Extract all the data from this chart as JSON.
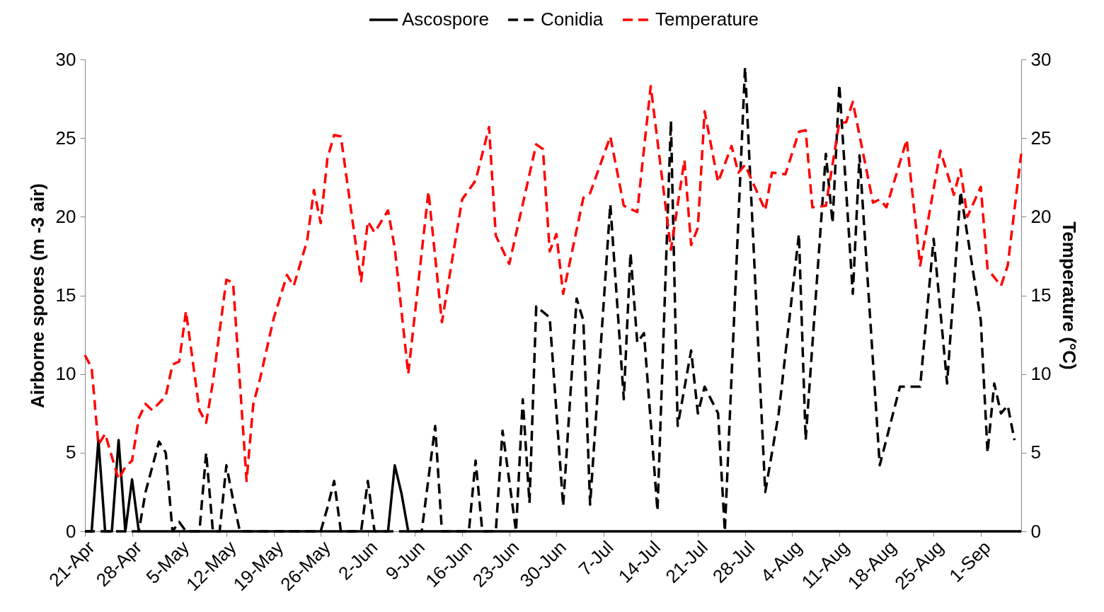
{
  "chart_data": {
    "type": "line",
    "ylabel": "Airborne spores (m -3 air)",
    "y2label": "Temperature (°C)",
    "legend": "top",
    "xlim": [
      "--04-21",
      "--09-07"
    ],
    "xticks": [
      {
        "value": "--04-21",
        "label": "21-Apr"
      },
      {
        "value": "--04-28",
        "label": "28-Apr"
      },
      {
        "value": "--05-05",
        "label": "5-May"
      },
      {
        "value": "--05-12",
        "label": "12-May"
      },
      {
        "value": "--05-19",
        "label": "19-May"
      },
      {
        "value": "--05-26",
        "label": "26-May"
      },
      {
        "value": "--06-02",
        "label": "2-Jun"
      },
      {
        "value": "--06-09",
        "label": "9-Jun"
      },
      {
        "value": "--06-16",
        "label": "16-Jun"
      },
      {
        "value": "--06-23",
        "label": "23-Jun"
      },
      {
        "value": "--06-30",
        "label": "30-Jun"
      },
      {
        "value": "--07-07",
        "label": "7-Jul"
      },
      {
        "value": "--07-14",
        "label": "14-Jul"
      },
      {
        "value": "--07-21",
        "label": "21-Jul"
      },
      {
        "value": "--07-28",
        "label": "28-Jul"
      },
      {
        "value": "--08-04",
        "label": "4-Aug"
      },
      {
        "value": "--08-11",
        "label": "11-Aug"
      },
      {
        "value": "--08-18",
        "label": "18-Aug"
      },
      {
        "value": "--08-25",
        "label": "25-Aug"
      },
      {
        "value": "--09-01",
        "label": "1-Sep"
      }
    ],
    "ylim": [
      0,
      30
    ],
    "yticks": [
      0,
      5,
      10,
      15,
      20,
      25,
      30
    ],
    "y2lim": [
      0,
      30
    ],
    "y2ticks": [
      0,
      5,
      10,
      15,
      20,
      25,
      30
    ],
    "series": [
      {
        "name": "Ascospore",
        "color": "#000000",
        "line_style": "solid",
        "x": [
          "--04-21",
          "--04-22",
          "--04-23",
          "--04-24",
          "--04-25",
          "--04-26",
          "--04-27",
          "--04-28",
          "--04-29",
          "--06-05",
          "--06-06",
          "--06-07",
          "--06-08",
          "--09-07"
        ],
        "values": [
          0,
          0,
          5.8,
          0,
          0,
          5.8,
          0,
          3.3,
          0,
          0,
          4.2,
          2.4,
          0,
          0
        ]
      },
      {
        "name": "Conidia",
        "color": "#000000",
        "line_style": "dashed",
        "x": [
          "--04-21",
          "--04-29",
          "--04-30",
          "--05-02",
          "--05-03",
          "--05-04",
          "--05-05",
          "--05-06",
          "--05-08",
          "--05-09",
          "--05-10",
          "--05-11",
          "--05-12",
          "--05-13",
          "--05-14",
          "--05-26",
          "--05-27",
          "--05-28",
          "--05-29",
          "--06-01",
          "--06-02",
          "--06-03",
          "--06-10",
          "--06-12",
          "--06-13",
          "--06-17",
          "--06-18",
          "--06-19",
          "--06-21",
          "--06-22",
          "--06-24",
          "--06-25",
          "--06-26",
          "--06-27",
          "--06-29",
          "--07-01",
          "--07-03",
          "--07-04",
          "--07-05",
          "--07-08",
          "--07-10",
          "--07-11",
          "--07-12",
          "--07-13",
          "--07-15",
          "--07-17",
          "--07-18",
          "--07-20",
          "--07-21",
          "--07-22",
          "--07-24",
          "--07-25",
          "--07-28",
          "--07-31",
          "--08-02",
          "--08-05",
          "--08-06",
          "--08-09",
          "--08-10",
          "--08-11",
          "--08-13",
          "--08-14",
          "--08-17",
          "--08-20",
          "--08-23",
          "--08-25",
          "--08-27",
          "--08-29",
          "--09-01",
          "--09-02",
          "--09-03",
          "--09-04",
          "--09-05",
          "--09-06"
        ],
        "values": [
          0,
          0,
          2.5,
          5.7,
          5.0,
          0,
          0.6,
          0,
          0,
          5.0,
          0,
          0,
          4.2,
          2.0,
          0,
          0,
          1.5,
          3.2,
          0,
          0,
          3.2,
          0,
          0,
          6.7,
          0,
          0,
          4.5,
          0,
          0,
          6.4,
          0,
          8.4,
          1.8,
          14.3,
          13.6,
          1.6,
          14.8,
          13.4,
          1.7,
          20.8,
          8.4,
          17.7,
          12.0,
          12.6,
          1.3,
          26.1,
          6.7,
          11.5,
          7.5,
          9.2,
          7.5,
          0,
          29.5,
          2.5,
          7.5,
          18.9,
          5.8,
          24.0,
          19.6,
          28.4,
          15.1,
          23.9,
          4.2,
          9.2,
          9.2,
          18.6,
          9.4,
          21.6,
          13.4,
          5.0,
          9.4,
          7.5,
          8.0,
          5.8
        ]
      },
      {
        "name": "Temperature",
        "color": "#ff0000",
        "line_style": "dashed",
        "axis": "y2",
        "x": [
          "--04-21",
          "--04-22",
          "--04-23",
          "--04-24",
          "--04-26",
          "--04-27",
          "--04-28",
          "--04-29",
          "--04-30",
          "--05-01",
          "--05-03",
          "--05-04",
          "--05-05",
          "--05-06",
          "--05-08",
          "--05-09",
          "--05-10",
          "--05-12",
          "--05-13",
          "--05-15",
          "--05-16",
          "--05-17",
          "--05-19",
          "--05-21",
          "--05-22",
          "--05-24",
          "--05-25",
          "--05-26",
          "--05-27",
          "--05-28",
          "--05-29",
          "--05-31",
          "--06-01",
          "--06-02",
          "--06-03",
          "--06-05",
          "--06-06",
          "--06-08",
          "--06-11",
          "--06-13",
          "--06-16",
          "--06-18",
          "--06-20",
          "--06-21",
          "--06-23",
          "--06-27",
          "--06-28",
          "--06-29",
          "--06-30",
          "--07-01",
          "--07-04",
          "--07-05",
          "--07-08",
          "--07-10",
          "--07-12",
          "--07-14",
          "--07-17",
          "--07-19",
          "--07-20",
          "--07-21",
          "--07-22",
          "--07-24",
          "--07-26",
          "--07-27",
          "--07-28",
          "--07-31",
          "--08-01",
          "--08-03",
          "--08-05",
          "--08-06",
          "--08-07",
          "--08-09",
          "--08-11",
          "--08-12",
          "--08-13",
          "--08-16",
          "--08-17",
          "--08-18",
          "--08-21",
          "--08-23",
          "--08-26",
          "--08-28",
          "--08-29",
          "--08-30",
          "--09-01",
          "--09-02",
          "--09-04",
          "--09-05",
          "--09-07"
        ],
        "values": [
          11.2,
          10.4,
          5.5,
          6.2,
          3.3,
          4.1,
          4.5,
          7.2,
          8.1,
          7.7,
          8.6,
          10.6,
          10.8,
          14.0,
          7.7,
          6.9,
          9.5,
          16.0,
          15.8,
          3.2,
          8.1,
          9.7,
          13.5,
          16.3,
          15.6,
          18.5,
          21.7,
          19.6,
          23.7,
          25.2,
          25.1,
          18.9,
          15.9,
          19.7,
          19.0,
          20.4,
          18.0,
          10.0,
          21.6,
          13.3,
          21.1,
          22.3,
          25.7,
          18.8,
          17.0,
          24.6,
          24.3,
          17.8,
          18.9,
          15.1,
          21.2,
          21.5,
          25.1,
          20.7,
          20.3,
          28.3,
          17.9,
          23.6,
          18.2,
          19.3,
          26.7,
          22.2,
          24.5,
          22.8,
          23.3,
          20.4,
          22.8,
          22.7,
          25.4,
          25.5,
          20.6,
          20.7,
          26.0,
          26.0,
          27.3,
          20.9,
          21.1,
          20.6,
          24.9,
          16.9,
          24.2,
          21.4,
          23.0,
          20.0,
          21.9,
          16.7,
          15.6,
          16.9,
          24.0
        ]
      }
    ]
  }
}
